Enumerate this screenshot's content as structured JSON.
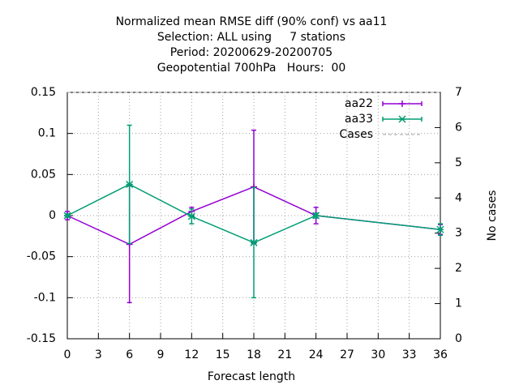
{
  "chart_data": {
    "type": "line",
    "title": [
      "Normalized mean RMSE diff (90% conf) vs aa11",
      "Selection: ALL using     7 stations",
      "Period: 20200629-20200705",
      "Geopotential 700hPa   Hours:  00"
    ],
    "xlabel": "Forecast length",
    "y2label": "No cases",
    "x": [
      0,
      6,
      12,
      18,
      24,
      36
    ],
    "series": [
      {
        "name": "aa22",
        "color": "#9400d3",
        "marker": "plus",
        "values": [
          0,
          -0.035,
          0.005,
          0.035,
          0,
          -0.017
        ],
        "errors": [
          0.005,
          0.071,
          0.005,
          0.069,
          0.01,
          0.006
        ]
      },
      {
        "name": "aa33",
        "color": "#009e73",
        "marker": "star",
        "values": [
          0,
          0.038,
          -0.001,
          -0.033,
          0,
          -0.017
        ],
        "errors": [
          0.002,
          0.072,
          0.009,
          0.067,
          0.003,
          0.007
        ]
      },
      {
        "name": "Cases",
        "color": "#a0a0a0",
        "dashed": true,
        "axis": "y2",
        "values": [
          7,
          7,
          7,
          7,
          7,
          7
        ]
      }
    ],
    "xlim": [
      0,
      36
    ],
    "xticks": [
      0,
      3,
      6,
      9,
      12,
      15,
      18,
      21,
      24,
      27,
      30,
      33,
      36
    ],
    "ylim": [
      -0.15,
      0.15
    ],
    "yticks": [
      -0.15,
      -0.1,
      -0.05,
      0,
      0.05,
      0.1,
      0.15
    ],
    "y2lim": [
      0,
      7
    ],
    "y2ticks": [
      0,
      1,
      2,
      3,
      4,
      5,
      6,
      7
    ],
    "grid": true,
    "legend": "top-right"
  }
}
